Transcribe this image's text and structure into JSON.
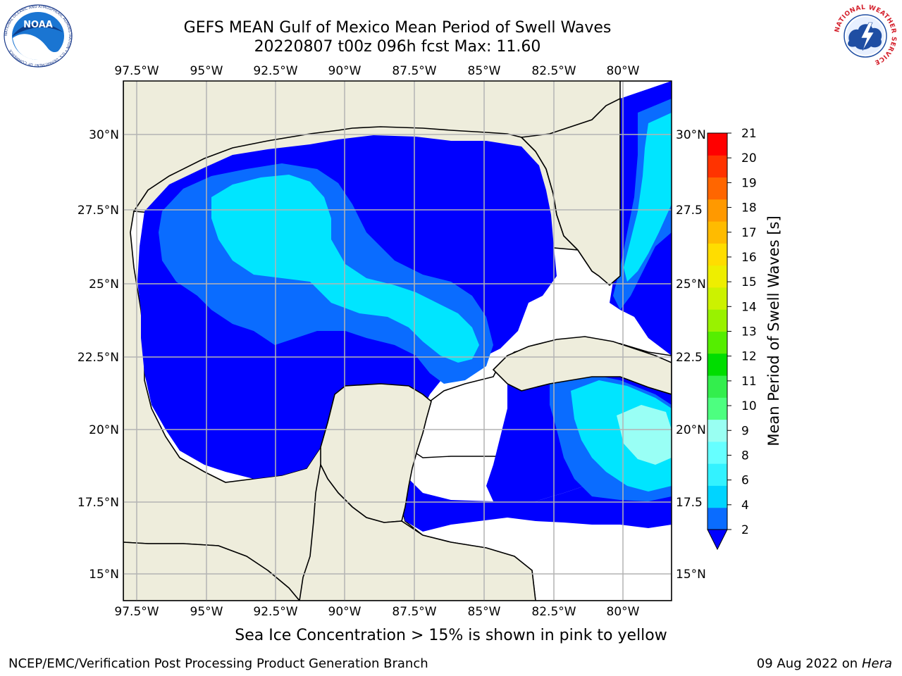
{
  "title": {
    "line1": "GEFS MEAN Gulf of Mexico Mean Period of Swell Waves",
    "line2": "20220807 t00z 096h fcst   Max: 11.60"
  },
  "map": {
    "region": "Gulf of Mexico",
    "lon_labels": [
      "97.5°W",
      "95°W",
      "92.5°W",
      "90°W",
      "87.5°W",
      "85°W",
      "82.5°W",
      "80°W"
    ],
    "lat_labels_left": [
      "30°N",
      "27.5°N",
      "25°N",
      "22.5°N",
      "20°N",
      "17.5°N",
      "15°N"
    ],
    "lat_labels_right": [
      "30°N",
      "27.5",
      "25°N",
      "22.5",
      "20°N",
      "17.5",
      "15°N"
    ],
    "land_color": "#eeeddc",
    "sea_color": "#ffffff",
    "grid_color": "#b4b4b4"
  },
  "colorbar": {
    "label": "Mean Period of Swell Waves [s]",
    "ticks": [
      "2",
      "4",
      "6",
      "8",
      "9",
      "10",
      "11",
      "12",
      "13",
      "14",
      "15",
      "16",
      "17",
      "18",
      "19",
      "20",
      "21"
    ],
    "colors": [
      "#0a6cff",
      "#00d4ff",
      "#33f2ff",
      "#66ffff",
      "#99fff2",
      "#4dff80",
      "#33ee4d",
      "#00dd00",
      "#55ee00",
      "#99f200",
      "#ccf200",
      "#eeee00",
      "#ffdd00",
      "#ffbb00",
      "#ff9900",
      "#ff6600",
      "#ff3300",
      "#ff0000"
    ],
    "under_color": "#0000ff"
  },
  "fill_colors": {
    "blue": "#0000ff",
    "mid_blue": "#0a6cff",
    "cyan": "#00e5ff",
    "light_cyan": "#99fff5",
    "green": "#55f07a",
    "bright_green": "#22dd44"
  },
  "caption": "Sea Ice Concentration > 15% is shown in pink to yellow",
  "footer": {
    "left": "NCEP/EMC/Verification Post Processing Product Generation Branch",
    "right_date": "09 Aug 2022 on",
    "right_host": "Hera"
  },
  "logos": {
    "noaa_text": "NOAA",
    "noaa_ring": "NATIONAL OCEANIC AND ATMOSPHERIC ADMINISTRATION • U.S. DEPARTMENT OF COMMERCE",
    "nws_ring": "NATIONAL WEATHER SERVICE"
  }
}
